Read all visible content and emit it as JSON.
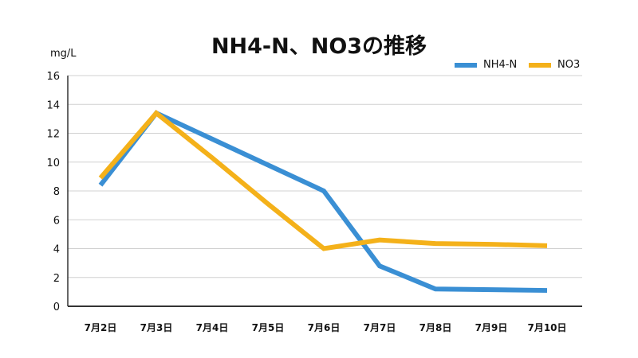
{
  "chart_data": {
    "type": "line",
    "title": "NH4-N、NO3の推移",
    "ylabel": "mg/L",
    "xlabel": "",
    "categories": [
      "7月2日",
      "7月3日",
      "7月4日",
      "7月5日",
      "7月6日",
      "7月7日",
      "7月8日",
      "7月9日",
      "7月10日"
    ],
    "ylim": [
      0,
      16
    ],
    "yticks": [
      "0",
      "2",
      "4",
      "6",
      "8",
      "10",
      "12",
      "14",
      "16"
    ],
    "grid": true,
    "legend_position": "top-right",
    "series": [
      {
        "name": "NH4-N",
        "color": "#3a8fd4",
        "values": [
          8.4,
          13.4,
          11.6,
          9.8,
          8.0,
          2.8,
          1.2,
          1.15,
          1.1
        ]
      },
      {
        "name": "NO3",
        "color": "#f4b11a",
        "values": [
          8.9,
          13.4,
          10.3,
          7.1,
          4.0,
          4.6,
          4.35,
          4.3,
          4.2
        ]
      }
    ]
  }
}
